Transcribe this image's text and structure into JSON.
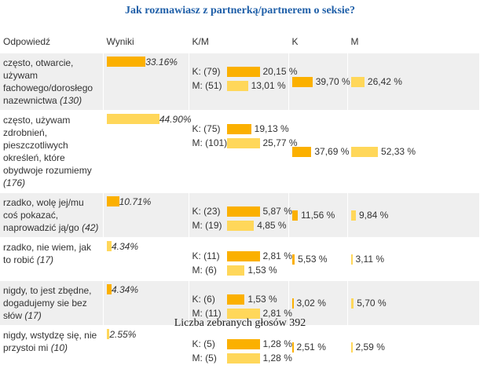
{
  "title": "Jak rozmawiasz z partnerką/partnerem o seksie?",
  "headers": {
    "answer": "Odpowiedź",
    "results": "Wyniki",
    "km": "K/M",
    "k": "K",
    "m": "M"
  },
  "rows": [
    {
      "text": "często, otwarcie, używam fachowego/dorosłego nazewnictwa",
      "count": "(130)",
      "result": 33.16,
      "result_label": "33.16%",
      "k_count": "K: (79)",
      "k_pct": 20.15,
      "k_label": "20,15 %",
      "m_count": "M: (51)",
      "m_pct": 13.01,
      "m_label": "13,01 %",
      "K": 39.7,
      "K_label": "39,70 %",
      "M": 26.42,
      "M_label": "26,42 %"
    },
    {
      "text": "często, używam zdrobnień, pieszczotliwych określeń, które obydwoje rozumiemy",
      "count": "(176)",
      "result": 44.9,
      "result_label": "44.90%",
      "k_count": "K: (75)",
      "k_pct": 19.13,
      "k_label": "19,13 %",
      "m_count": "M: (101)",
      "m_pct": 25.77,
      "m_label": "25,77 %",
      "K": 37.69,
      "K_label": "37,69 %",
      "M": 52.33,
      "M_label": "52,33 %"
    },
    {
      "text": "rzadko, wolę jej/mu coś pokazać, naprowadzić ją/go",
      "count": "(42)",
      "result": 10.71,
      "result_label": "10.71%",
      "k_count": "K: (23)",
      "k_pct": 5.87,
      "k_label": "5,87 %",
      "m_count": "M: (19)",
      "m_pct": 4.85,
      "m_label": "4,85 %",
      "K": 11.56,
      "K_label": "11,56 %",
      "M": 9.84,
      "M_label": "9,84 %"
    },
    {
      "text": "rzadko, nie wiem, jak to robić",
      "count": "(17)",
      "result": 4.34,
      "result_label": "4.34%",
      "k_count": "K: (11)",
      "k_pct": 2.81,
      "k_label": "2,81 %",
      "m_count": "M: (6)",
      "m_pct": 1.53,
      "m_label": "1,53 %",
      "K": 5.53,
      "K_label": "5,53 %",
      "M": 3.11,
      "M_label": "3,11 %"
    },
    {
      "text": "nigdy, to jest zbędne, dogadujemy sie bez słów",
      "count": "(17)",
      "result": 4.34,
      "result_label": "4.34%",
      "k_count": "K: (6)",
      "k_pct": 1.53,
      "k_label": "1,53 %",
      "m_count": "M: (11)",
      "m_pct": 2.81,
      "m_label": "2,81 %",
      "K": 3.02,
      "K_label": "3,02 %",
      "M": 5.7,
      "M_label": "5,70 %"
    },
    {
      "text": "nigdy, wstydzę się, nie przystoi mi",
      "count": "(10)",
      "result": 2.55,
      "result_label": "2.55%",
      "k_count": "K: (5)",
      "k_pct": 1.28,
      "k_label": "1,28 %",
      "m_count": "M: (5)",
      "m_pct": 1.28,
      "m_label": "1,28 %",
      "K": 2.51,
      "K_label": "2,51 %",
      "M": 2.59,
      "M_label": "2,59 %"
    }
  ],
  "footer": "Liczba zebranych głosów 392"
}
